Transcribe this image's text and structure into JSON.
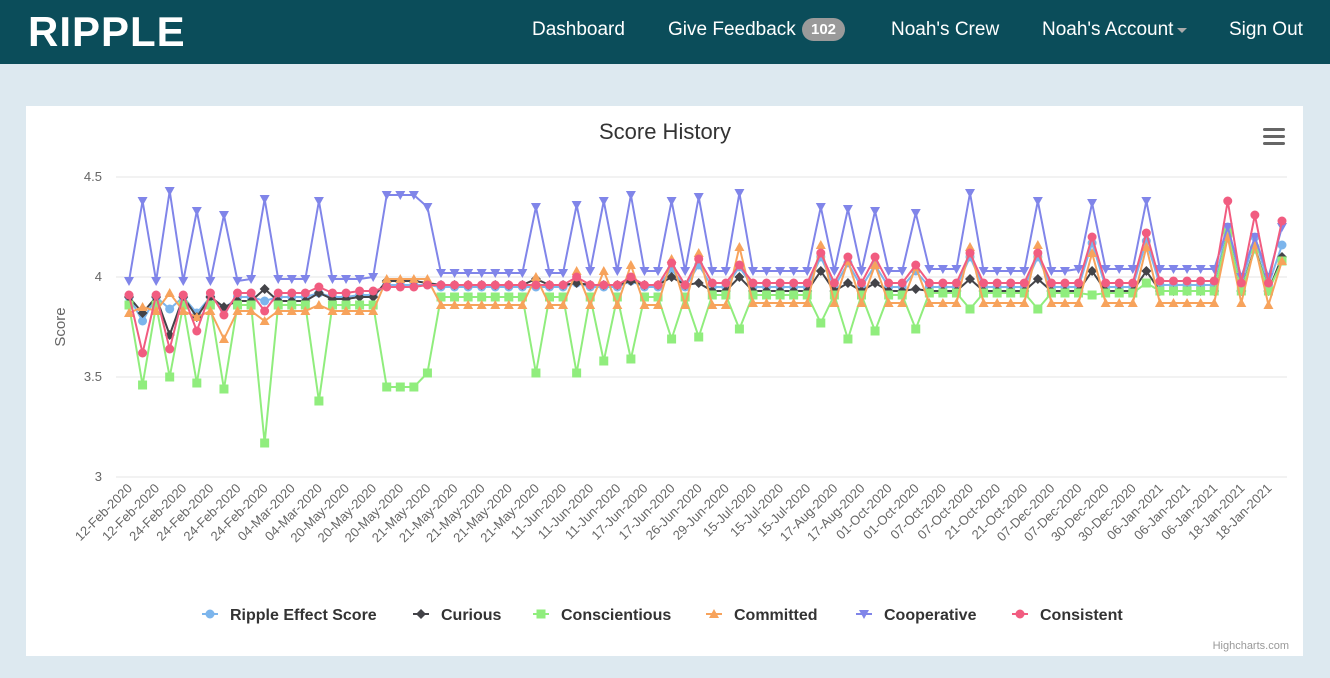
{
  "header": {
    "logo": "RIPPLE",
    "nav": [
      "Dashboard",
      "Give Feedback",
      "Noah's Crew",
      "Noah's Account",
      "Sign Out"
    ],
    "badge": "102"
  },
  "chart_data": {
    "type": "line",
    "title": "Score History",
    "y_label": "Score",
    "credit": "Highcharts.com",
    "ylim": [
      3,
      4.5
    ],
    "yticks": [
      3,
      3.5,
      4,
      4.5
    ],
    "grid": true,
    "categories": [
      "12-Feb-2020",
      null,
      "12-Feb-2020",
      null,
      "24-Feb-2020",
      null,
      "24-Feb-2020",
      null,
      "24-Feb-2020",
      null,
      "24-Feb-2020",
      null,
      "04-Mar-2020",
      null,
      "04-Mar-2020",
      null,
      "20-May-2020",
      null,
      "20-May-2020",
      null,
      "20-May-2020",
      null,
      "21-May-2020",
      null,
      "21-May-2020",
      null,
      "21-May-2020",
      null,
      "21-May-2020",
      null,
      "21-May-2020",
      null,
      "11-Jun-2020",
      null,
      "11-Jun-2020",
      null,
      "11-Jun-2020",
      null,
      "17-Jun-2020",
      null,
      "17-Jun-2020",
      null,
      "26-Jun-2020",
      null,
      "29-Jun-2020",
      null,
      "15-Jul-2020",
      null,
      "15-Jul-2020",
      null,
      "15-Jul-2020",
      null,
      "17-Aug-2020",
      null,
      "17-Aug-2020",
      null,
      "01-Oct-2020",
      null,
      "01-Oct-2020",
      null,
      "07-Oct-2020",
      null,
      "07-Oct-2020",
      null,
      "21-Oct-2020",
      null,
      "21-Oct-2020",
      null,
      "07-Dec-2020",
      null,
      "07-Dec-2020",
      null,
      "30-Dec-2020",
      null,
      "30-Dec-2020",
      null,
      "06-Jan-2021",
      null,
      "06-Jan-2021",
      null,
      "06-Jan-2021",
      null,
      "18-Jan-2021",
      null,
      "18-Jan-2021",
      null
    ],
    "series": [
      {
        "name": "Ripple Effect Score",
        "color": "#7cb5ec",
        "marker": "circle",
        "values": [
          3.9,
          3.78,
          3.9,
          3.84,
          3.9,
          3.82,
          3.9,
          3.84,
          3.9,
          3.9,
          3.88,
          3.9,
          3.9,
          3.9,
          3.92,
          3.9,
          3.9,
          3.91,
          3.91,
          3.96,
          3.96,
          3.96,
          3.96,
          3.95,
          3.95,
          3.95,
          3.95,
          3.95,
          3.95,
          3.95,
          3.95,
          3.95,
          3.95,
          3.97,
          3.95,
          3.95,
          3.95,
          3.98,
          3.95,
          3.95,
          4.04,
          3.95,
          4.06,
          3.95,
          3.95,
          4.05,
          3.95,
          3.95,
          3.95,
          3.95,
          3.95,
          4.1,
          3.95,
          4.07,
          3.95,
          4.06,
          3.95,
          3.95,
          4.03,
          3.95,
          3.95,
          3.95,
          4.1,
          3.95,
          3.95,
          3.95,
          3.95,
          4.1,
          3.95,
          3.95,
          3.95,
          4.17,
          3.95,
          3.95,
          3.95,
          4.18,
          3.96,
          3.96,
          3.96,
          3.96,
          3.96,
          4.25,
          3.96,
          4.2,
          3.96,
          4.16
        ]
      },
      {
        "name": "Curious",
        "color": "#434348",
        "marker": "diamond",
        "values": [
          3.9,
          3.82,
          3.9,
          3.71,
          3.9,
          3.8,
          3.9,
          3.85,
          3.88,
          3.88,
          3.94,
          3.88,
          3.88,
          3.88,
          3.92,
          3.89,
          3.89,
          3.9,
          3.9,
          3.98,
          3.98,
          3.98,
          3.97,
          3.96,
          3.96,
          3.96,
          3.96,
          3.96,
          3.96,
          3.96,
          3.99,
          3.96,
          3.96,
          3.97,
          3.96,
          3.96,
          3.96,
          3.98,
          3.96,
          3.96,
          4.0,
          3.96,
          3.97,
          3.93,
          3.93,
          4.0,
          3.93,
          3.93,
          3.93,
          3.93,
          3.93,
          4.03,
          3.93,
          3.97,
          3.93,
          3.97,
          3.93,
          3.93,
          3.94,
          3.93,
          3.93,
          3.93,
          3.99,
          3.93,
          3.93,
          3.93,
          3.93,
          3.99,
          3.93,
          3.93,
          3.93,
          4.03,
          3.93,
          3.93,
          3.93,
          4.03,
          3.93,
          3.93,
          3.93,
          3.93,
          3.93,
          4.22,
          3.93,
          4.15,
          3.93,
          4.1
        ]
      },
      {
        "name": "Conscientious",
        "color": "#90ed7d",
        "marker": "square",
        "values": [
          3.86,
          3.46,
          3.86,
          3.5,
          3.86,
          3.47,
          3.86,
          3.44,
          3.86,
          3.86,
          3.17,
          3.86,
          3.86,
          3.86,
          3.38,
          3.86,
          3.86,
          3.86,
          3.86,
          3.45,
          3.45,
          3.45,
          3.52,
          3.9,
          3.9,
          3.9,
          3.9,
          3.9,
          3.9,
          3.9,
          3.52,
          3.9,
          3.9,
          3.52,
          3.9,
          3.58,
          3.9,
          3.59,
          3.9,
          3.9,
          3.69,
          3.9,
          3.7,
          3.91,
          3.91,
          3.74,
          3.91,
          3.91,
          3.91,
          3.91,
          3.91,
          3.77,
          3.91,
          3.69,
          3.91,
          3.73,
          3.91,
          3.91,
          3.74,
          3.92,
          3.92,
          3.92,
          3.84,
          3.92,
          3.92,
          3.92,
          3.92,
          3.84,
          3.92,
          3.92,
          3.92,
          3.91,
          3.92,
          3.92,
          3.92,
          3.97,
          3.93,
          3.93,
          3.93,
          3.93,
          3.93,
          4.22,
          3.93,
          4.14,
          3.93,
          4.08
        ]
      },
      {
        "name": "Committed",
        "color": "#f7a35c",
        "marker": "triangle",
        "values": [
          3.82,
          3.85,
          3.83,
          3.92,
          3.83,
          3.8,
          3.83,
          3.69,
          3.83,
          3.83,
          3.78,
          3.83,
          3.83,
          3.83,
          3.86,
          3.83,
          3.83,
          3.83,
          3.83,
          3.99,
          3.99,
          3.99,
          3.99,
          3.86,
          3.86,
          3.86,
          3.86,
          3.86,
          3.86,
          3.86,
          4.0,
          3.86,
          3.86,
          4.03,
          3.86,
          4.03,
          3.86,
          4.06,
          3.86,
          3.86,
          4.09,
          3.86,
          4.12,
          3.86,
          3.86,
          4.15,
          3.87,
          3.87,
          3.87,
          3.87,
          3.87,
          4.16,
          3.87,
          4.08,
          3.87,
          4.06,
          3.87,
          3.87,
          4.05,
          3.87,
          3.87,
          3.87,
          4.15,
          3.87,
          3.87,
          3.87,
          3.87,
          4.16,
          3.87,
          3.87,
          3.87,
          4.12,
          3.87,
          3.87,
          3.87,
          4.15,
          3.87,
          3.87,
          3.87,
          3.87,
          3.87,
          4.2,
          3.87,
          4.16,
          3.86,
          4.08
        ]
      },
      {
        "name": "Cooperative",
        "color": "#8085e9",
        "marker": "triangle-down",
        "values": [
          3.98,
          4.38,
          3.98,
          4.43,
          3.98,
          4.33,
          3.98,
          4.31,
          3.98,
          3.99,
          4.39,
          3.99,
          3.99,
          3.99,
          4.38,
          3.99,
          3.99,
          3.99,
          4.0,
          4.41,
          4.41,
          4.41,
          4.35,
          4.02,
          4.02,
          4.02,
          4.02,
          4.02,
          4.02,
          4.02,
          4.35,
          4.02,
          4.02,
          4.36,
          4.03,
          4.38,
          4.03,
          4.41,
          4.03,
          4.03,
          4.38,
          4.03,
          4.4,
          4.03,
          4.03,
          4.42,
          4.03,
          4.03,
          4.03,
          4.03,
          4.03,
          4.35,
          4.03,
          4.34,
          4.03,
          4.33,
          4.03,
          4.03,
          4.32,
          4.04,
          4.04,
          4.04,
          4.42,
          4.03,
          4.03,
          4.03,
          4.03,
          4.38,
          4.03,
          4.03,
          4.04,
          4.37,
          4.04,
          4.04,
          4.04,
          4.38,
          4.04,
          4.04,
          4.04,
          4.04,
          4.04,
          4.25,
          4.0,
          4.2,
          4.0,
          4.25
        ]
      },
      {
        "name": "Consistent",
        "color": "#f15c80",
        "marker": "circle",
        "values": [
          3.91,
          3.62,
          3.91,
          3.64,
          3.91,
          3.73,
          3.92,
          3.81,
          3.92,
          3.92,
          3.83,
          3.92,
          3.92,
          3.92,
          3.95,
          3.92,
          3.92,
          3.93,
          3.93,
          3.95,
          3.95,
          3.95,
          3.96,
          3.96,
          3.96,
          3.96,
          3.96,
          3.96,
          3.96,
          3.96,
          3.96,
          3.96,
          3.96,
          4.0,
          3.96,
          3.96,
          3.96,
          4.0,
          3.96,
          3.96,
          4.07,
          3.96,
          4.09,
          3.97,
          3.97,
          4.06,
          3.97,
          3.97,
          3.97,
          3.97,
          3.97,
          4.12,
          3.97,
          4.1,
          3.97,
          4.1,
          3.97,
          3.97,
          4.06,
          3.97,
          3.97,
          3.97,
          4.12,
          3.97,
          3.97,
          3.97,
          3.97,
          4.12,
          3.97,
          3.97,
          3.97,
          4.2,
          3.97,
          3.97,
          3.97,
          4.22,
          3.98,
          3.98,
          3.98,
          3.98,
          3.98,
          4.38,
          3.97,
          4.31,
          3.97,
          4.28
        ]
      }
    ]
  }
}
